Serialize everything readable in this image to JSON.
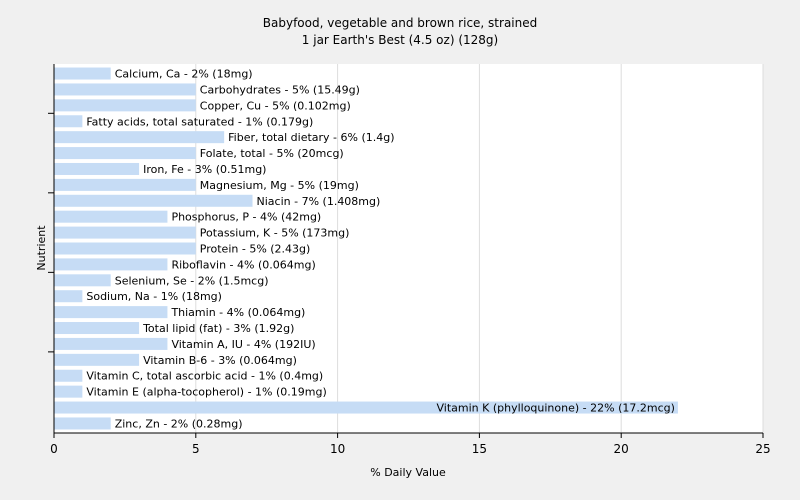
{
  "chart_data": {
    "type": "bar",
    "orientation": "horizontal",
    "title": "Babyfood, vegetable and brown rice, strained",
    "subtitle": "1 jar Earth's Best (4.5 oz) (128g)",
    "xlabel": "% Daily Value",
    "ylabel": "Nutrient",
    "xlim": [
      0,
      25
    ],
    "xticks": [
      0,
      5,
      10,
      15,
      20,
      25
    ],
    "grid": true,
    "bar_color": "#c6dcf5",
    "categories": [
      "Calcium, Ca",
      "Carbohydrates",
      "Copper, Cu",
      "Fatty acids, total saturated",
      "Fiber, total dietary",
      "Folate, total",
      "Iron, Fe",
      "Magnesium, Mg",
      "Niacin",
      "Phosphorus, P",
      "Potassium, K",
      "Protein",
      "Riboflavin",
      "Selenium, Se",
      "Sodium, Na",
      "Thiamin",
      "Total lipid (fat)",
      "Vitamin A, IU",
      "Vitamin B-6",
      "Vitamin C, total ascorbic acid",
      "Vitamin E (alpha-tocopherol)",
      "Vitamin K (phylloquinone)",
      "Zinc, Zn"
    ],
    "values": [
      2,
      5,
      5,
      1,
      6,
      5,
      3,
      5,
      7,
      4,
      5,
      5,
      4,
      2,
      1,
      4,
      3,
      4,
      3,
      1,
      1,
      22,
      2
    ],
    "labels": [
      "Calcium, Ca - 2% (18mg)",
      "Carbohydrates - 5% (15.49g)",
      "Copper, Cu - 5% (0.102mg)",
      "Fatty acids, total saturated - 1% (0.179g)",
      "Fiber, total dietary - 6% (1.4g)",
      "Folate, total - 5% (20mcg)",
      "Iron, Fe - 3% (0.51mg)",
      "Magnesium, Mg - 5% (19mg)",
      "Niacin - 7% (1.408mg)",
      "Phosphorus, P - 4% (42mg)",
      "Potassium, K - 5% (173mg)",
      "Protein - 5% (2.43g)",
      "Riboflavin - 4% (0.064mg)",
      "Selenium, Se - 2% (1.5mcg)",
      "Sodium, Na - 1% (18mg)",
      "Thiamin - 4% (0.064mg)",
      "Total lipid (fat) - 3% (1.92g)",
      "Vitamin A, IU - 4% (192IU)",
      "Vitamin B-6 - 3% (0.064mg)",
      "Vitamin C, total ascorbic acid - 1% (0.4mg)",
      "Vitamin E (alpha-tocopherol) - 1% (0.19mg)",
      "Vitamin K (phylloquinone) - 22% (17.2mcg)",
      "Zinc, Zn - 2% (0.28mg)"
    ]
  }
}
